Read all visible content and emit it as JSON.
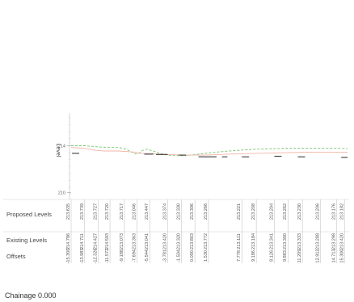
{
  "chart_data": {
    "type": "line",
    "ylabel": "Level",
    "ytick_labels": [
      "214",
      "210"
    ],
    "ytick_values": [
      214,
      210
    ],
    "ylim": [
      209.4,
      216.8
    ],
    "series": [
      {
        "color": "#74c46a",
        "dash": "3,2",
        "points": [
          [
            -15.3,
            214.0
          ],
          [
            -13.8,
            214.0
          ],
          [
            -12.3,
            213.9
          ],
          [
            -11.0,
            213.85
          ],
          [
            -10.0,
            213.85
          ],
          [
            -9.2,
            213.7
          ],
          [
            -8.6,
            213.45
          ],
          [
            -8.2,
            213.3
          ],
          [
            -7.8,
            213.35
          ],
          [
            -7.4,
            213.6
          ],
          [
            -6.9,
            213.7
          ],
          [
            -6.2,
            213.55
          ],
          [
            -5.5,
            213.35
          ],
          [
            -4.6,
            213.2
          ],
          [
            -3.8,
            213.15
          ],
          [
            -3.0,
            213.15
          ],
          [
            -2.0,
            213.2
          ],
          [
            -1.0,
            213.3
          ],
          [
            0.0,
            213.4
          ],
          [
            1.5,
            213.5
          ],
          [
            3.0,
            213.6
          ],
          [
            5.0,
            213.7
          ],
          [
            7.0,
            213.75
          ],
          [
            9.0,
            213.8
          ],
          [
            11.0,
            213.8
          ],
          [
            12.5,
            213.8
          ],
          [
            14.0,
            213.8
          ],
          [
            15.3,
            213.75
          ]
        ]
      },
      {
        "color": "#f0b4a6",
        "dash": "",
        "points": [
          [
            -15.3,
            213.85
          ],
          [
            -14.0,
            213.8
          ],
          [
            -12.5,
            213.6
          ],
          [
            -11.6,
            213.55
          ],
          [
            -10.0,
            213.55
          ],
          [
            -8.2,
            213.45
          ],
          [
            -7.6,
            213.35
          ],
          [
            -6.0,
            213.3
          ],
          [
            -4.6,
            213.25
          ],
          [
            -3.0,
            213.2
          ],
          [
            -1.0,
            213.2
          ],
          [
            0.0,
            213.22
          ],
          [
            2.0,
            213.28
          ],
          [
            5.0,
            213.35
          ],
          [
            8.0,
            213.4
          ],
          [
            11.0,
            213.45
          ],
          [
            13.0,
            213.45
          ],
          [
            15.3,
            213.45
          ]
        ]
      }
    ],
    "existing_segments": [
      [
        -15.2,
        213.35,
        -14.4,
        213.35
      ],
      [
        -7.2,
        213.28,
        -6.2,
        213.28
      ],
      [
        -5.9,
        213.25,
        -4.6,
        213.25
      ],
      [
        -3.4,
        213.2,
        -2.6,
        213.2
      ],
      [
        -1.2,
        213.05,
        0.8,
        213.05
      ],
      [
        1.4,
        213.05,
        2.0,
        213.05
      ],
      [
        3.6,
        213.05,
        4.4,
        213.05
      ],
      [
        7.2,
        213.1,
        8.0,
        213.1
      ],
      [
        9.8,
        213.05,
        10.6,
        213.05
      ],
      [
        14.6,
        213.0,
        15.3,
        213.0
      ]
    ],
    "table": {
      "rows": [
        "Proposed Levels",
        "Existing Levels",
        "Offsets"
      ],
      "columns": [
        {
          "x": -15.3,
          "proposed": "213.635",
          "existing": "214.786",
          "offset": "-15.300"
        },
        {
          "x": -13.8,
          "proposed": "213.739",
          "existing": "214.711",
          "offset": "-13.983"
        },
        {
          "x": -12.3,
          "proposed": "213.727",
          "existing": "214.427",
          "offset": "-12.326"
        },
        {
          "x": -11.0,
          "proposed": "213.720",
          "existing": "214.593",
          "offset": "-11.572"
        },
        {
          "x": -9.4,
          "proposed": "213.717",
          "existing": "213.073",
          "offset": "-9.188"
        },
        {
          "x": -8.0,
          "proposed": "213.046",
          "existing": "213.363",
          "offset": "-7.694"
        },
        {
          "x": -6.6,
          "proposed": "213.447",
          "existing": "213.041",
          "offset": "-5.544"
        },
        {
          "x": -4.6,
          "proposed": "213.374",
          "existing": "213.420",
          "offset": "-3.781"
        },
        {
          "x": -3.1,
          "proposed": "213.330",
          "existing": "213.320",
          "offset": "-1.504"
        },
        {
          "x": -1.6,
          "proposed": "213.306",
          "existing": "213.803",
          "offset": "0.000"
        },
        {
          "x": -0.1,
          "proposed": "213.266",
          "existing": "213.772",
          "offset": "1.530"
        },
        {
          "x": 3.6,
          "proposed": "213.221",
          "existing": "213.111",
          "offset": "7.778"
        },
        {
          "x": 5.2,
          "proposed": "213.208",
          "existing": "213.184",
          "offset": "9.186"
        },
        {
          "x": 7.2,
          "proposed": "213.204",
          "existing": "213.341",
          "offset": "8.126"
        },
        {
          "x": 8.7,
          "proposed": "213.262",
          "existing": "213.300",
          "offset": "9.883"
        },
        {
          "x": 10.3,
          "proposed": "213.230",
          "existing": "213.333",
          "offset": "11.209"
        },
        {
          "x": 12.3,
          "proposed": "213.206",
          "existing": "213.288",
          "offset": "12.912"
        },
        {
          "x": 14.1,
          "proposed": "213.176",
          "existing": "213.298",
          "offset": "14.713"
        },
        {
          "x": 15.0,
          "proposed": "213.182",
          "existing": "213.420",
          "offset": "15.300"
        }
      ]
    }
  },
  "footer": {
    "chainage": "Chainage 0.000"
  }
}
